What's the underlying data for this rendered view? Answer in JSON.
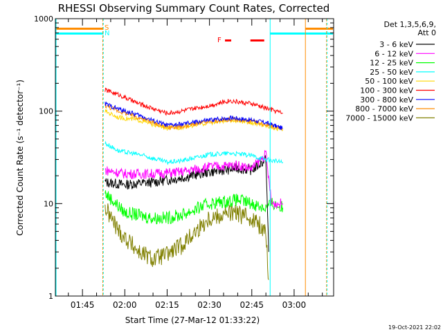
{
  "chart_data": {
    "type": "line",
    "title": "RHESSI Observing Summary Count Rates, Corrected",
    "xlabel": "Start Time (27-Mar-12 01:33:22)",
    "ylabel": "Corrected Count Rate (s⁻¹ detector⁻¹)",
    "yscale": "log",
    "ylim": [
      1,
      1000
    ],
    "xlim_minutes": [
      95.4,
      194
    ],
    "xticks": [
      {
        "label": "01:45",
        "minute": 105
      },
      {
        "label": "02:00",
        "minute": 120
      },
      {
        "label": "02:15",
        "minute": 135
      },
      {
        "label": "02:30",
        "minute": 150
      },
      {
        "label": "02:45",
        "minute": 165
      },
      {
        "label": "03:00",
        "minute": 180
      }
    ],
    "yticks": [
      {
        "label": "1",
        "value": 1
      },
      {
        "label": "10",
        "value": 10
      },
      {
        "label": "100",
        "value": 100
      },
      {
        "label": "1000",
        "value": 1000
      }
    ],
    "legend_header": [
      "Det 1,3,5,6,9,",
      "Att 0"
    ],
    "series": [
      {
        "name": "3 - 6 keV",
        "color": "#000000",
        "points": [
          [
            113,
            17
          ],
          [
            120,
            16
          ],
          [
            130,
            17
          ],
          [
            140,
            19
          ],
          [
            150,
            22
          ],
          [
            160,
            24
          ],
          [
            165,
            23
          ],
          [
            170,
            30
          ],
          [
            171,
            3
          ]
        ]
      },
      {
        "name": "6 - 12 keV",
        "color": "#ff00ff",
        "points": [
          [
            113,
            23
          ],
          [
            120,
            21
          ],
          [
            130,
            21
          ],
          [
            140,
            22
          ],
          [
            150,
            25
          ],
          [
            160,
            26
          ],
          [
            165,
            24
          ],
          [
            170,
            34
          ],
          [
            172,
            10
          ],
          [
            176,
            10
          ]
        ]
      },
      {
        "name": "12 - 25 keV",
        "color": "#00ff00",
        "points": [
          [
            113,
            13
          ],
          [
            120,
            8
          ],
          [
            130,
            7
          ],
          [
            135,
            7
          ],
          [
            140,
            7.5
          ],
          [
            150,
            10
          ],
          [
            160,
            11
          ],
          [
            165,
            10
          ],
          [
            170,
            9
          ],
          [
            172,
            10
          ],
          [
            176,
            9
          ]
        ]
      },
      {
        "name": "25 - 50 keV",
        "color": "#00ffff",
        "points": [
          [
            113,
            45
          ],
          [
            118,
            37
          ],
          [
            125,
            34
          ],
          [
            135,
            28
          ],
          [
            140,
            29
          ],
          [
            150,
            34
          ],
          [
            158,
            35
          ],
          [
            165,
            33
          ],
          [
            170,
            30
          ],
          [
            176,
            28
          ]
        ]
      },
      {
        "name": "50 - 100 keV",
        "color": "#ffd700",
        "points": [
          [
            113,
            100
          ],
          [
            118,
            85
          ],
          [
            125,
            80
          ],
          [
            135,
            65
          ],
          [
            140,
            67
          ],
          [
            150,
            75
          ],
          [
            158,
            80
          ],
          [
            165,
            75
          ],
          [
            170,
            70
          ],
          [
            176,
            62
          ]
        ]
      },
      {
        "name": "100 - 300 keV",
        "color": "#ff0000",
        "points": [
          [
            113,
            170
          ],
          [
            118,
            150
          ],
          [
            125,
            120
          ],
          [
            135,
            95
          ],
          [
            140,
            100
          ],
          [
            150,
            115
          ],
          [
            157,
            130
          ],
          [
            165,
            120
          ],
          [
            170,
            108
          ],
          [
            176,
            95
          ]
        ]
      },
      {
        "name": "300 - 800 keV",
        "color": "#0000ff",
        "points": [
          [
            113,
            120
          ],
          [
            118,
            105
          ],
          [
            125,
            90
          ],
          [
            135,
            70
          ],
          [
            140,
            72
          ],
          [
            150,
            80
          ],
          [
            158,
            85
          ],
          [
            165,
            80
          ],
          [
            170,
            75
          ],
          [
            176,
            65
          ]
        ]
      },
      {
        "name": "800 - 7000 keV",
        "color": "#ff8c00",
        "points": [
          [
            113,
            115
          ],
          [
            118,
            100
          ],
          [
            125,
            85
          ],
          [
            135,
            67
          ],
          [
            140,
            68
          ],
          [
            150,
            77
          ],
          [
            158,
            82
          ],
          [
            165,
            77
          ],
          [
            170,
            72
          ],
          [
            176,
            63
          ]
        ]
      },
      {
        "name": "7000 - 15000 keV",
        "color": "#808000",
        "points": [
          [
            113,
            9
          ],
          [
            118,
            5
          ],
          [
            125,
            3
          ],
          [
            130,
            2.5
          ],
          [
            135,
            2.8
          ],
          [
            140,
            3.5
          ],
          [
            150,
            7
          ],
          [
            158,
            8
          ],
          [
            165,
            7
          ],
          [
            170,
            5
          ],
          [
            171,
            1.5
          ]
        ]
      }
    ],
    "flags": [
      {
        "label": "S",
        "color": "#ff8c00"
      },
      {
        "label": "N",
        "color": "#00ffff"
      },
      {
        "label": "F",
        "color": "#ff0000"
      }
    ],
    "footer": "19-Oct-2021 22:02"
  }
}
